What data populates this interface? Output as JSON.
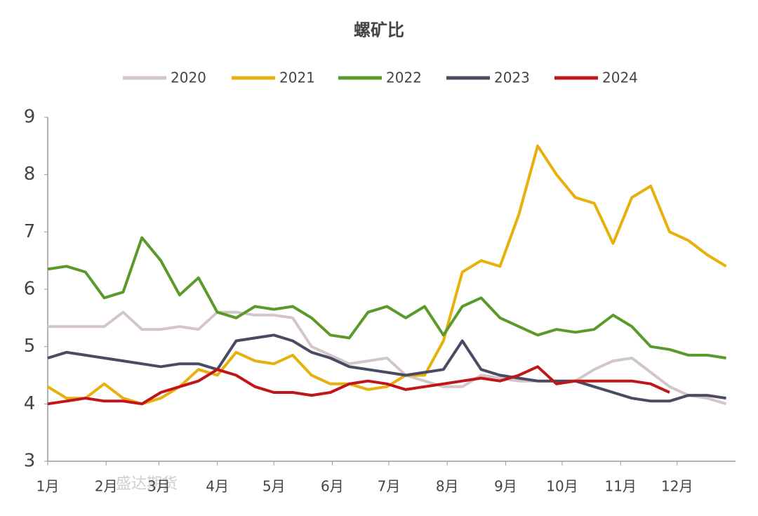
{
  "chart_data": {
    "type": "line",
    "title": "螺矿比",
    "watermark": "盛达期货",
    "x": [
      1,
      11,
      21,
      31,
      41,
      51,
      61,
      71,
      81,
      91,
      101,
      111,
      121,
      131,
      141,
      151,
      161,
      171,
      181,
      191,
      201,
      211,
      221,
      231,
      241,
      251,
      261,
      271,
      281,
      291,
      301,
      311,
      321,
      331,
      341,
      351,
      361
    ],
    "xlim": [
      1,
      366
    ],
    "xticks": [
      {
        "value": 1,
        "label": "1月"
      },
      {
        "value": 32,
        "label": "2月"
      },
      {
        "value": 60,
        "label": "3月"
      },
      {
        "value": 91,
        "label": "4月"
      },
      {
        "value": 121,
        "label": "5月"
      },
      {
        "value": 152,
        "label": "6月"
      },
      {
        "value": 182,
        "label": "7月"
      },
      {
        "value": 213,
        "label": "8月"
      },
      {
        "value": 244,
        "label": "9月"
      },
      {
        "value": 274,
        "label": "10月"
      },
      {
        "value": 305,
        "label": "11月"
      },
      {
        "value": 335,
        "label": "12月"
      }
    ],
    "ylim": [
      3,
      9
    ],
    "yticks": [
      3,
      4,
      5,
      6,
      7,
      8,
      9
    ],
    "series": [
      {
        "name": "2020",
        "color": "#d3c5c8",
        "values": [
          5.35,
          5.35,
          5.35,
          5.35,
          5.6,
          5.3,
          5.3,
          5.35,
          5.3,
          5.6,
          5.6,
          5.55,
          5.55,
          5.5,
          5.0,
          4.85,
          4.7,
          4.75,
          4.8,
          4.5,
          4.4,
          4.3,
          4.3,
          4.5,
          4.45,
          4.4,
          4.4,
          4.4,
          4.4,
          4.6,
          4.75,
          4.8,
          4.55,
          4.3,
          4.15,
          4.1,
          4.0
        ]
      },
      {
        "name": "2021",
        "color": "#e8b00c",
        "values": [
          4.3,
          4.1,
          4.1,
          4.35,
          4.1,
          4.0,
          4.1,
          4.3,
          4.6,
          4.5,
          4.9,
          4.75,
          4.7,
          4.85,
          4.5,
          4.35,
          4.35,
          4.25,
          4.3,
          4.5,
          4.5,
          5.1,
          6.3,
          6.5,
          6.4,
          7.3,
          8.5,
          8.0,
          7.6,
          7.5,
          6.8,
          7.6,
          7.8,
          7.0,
          6.85,
          6.6,
          6.4
        ]
      },
      {
        "name": "2022",
        "color": "#5a9a2a",
        "values": [
          6.35,
          6.4,
          6.3,
          5.85,
          5.95,
          6.9,
          6.5,
          5.9,
          6.2,
          5.6,
          5.5,
          5.7,
          5.65,
          5.7,
          5.5,
          5.2,
          5.15,
          5.6,
          5.7,
          5.5,
          5.7,
          5.2,
          5.7,
          5.85,
          5.5,
          5.35,
          5.2,
          5.3,
          5.25,
          5.3,
          5.55,
          5.35,
          5.0,
          4.95,
          4.85,
          4.85,
          4.8
        ]
      },
      {
        "name": "2023",
        "color": "#4a4b63",
        "values": [
          4.8,
          4.9,
          4.85,
          4.8,
          4.75,
          4.7,
          4.65,
          4.7,
          4.7,
          4.6,
          5.1,
          5.15,
          5.2,
          5.1,
          4.9,
          4.8,
          4.65,
          4.6,
          4.55,
          4.5,
          4.55,
          4.6,
          5.1,
          4.6,
          4.5,
          4.45,
          4.4,
          4.4,
          4.4,
          4.3,
          4.2,
          4.1,
          4.05,
          4.05,
          4.15,
          4.15,
          4.1
        ]
      },
      {
        "name": "2024",
        "color": "#c0161a",
        "values": [
          4.0,
          4.05,
          4.1,
          4.05,
          4.05,
          4.0,
          4.2,
          4.3,
          4.4,
          4.6,
          4.5,
          4.3,
          4.2,
          4.2,
          4.15,
          4.2,
          4.35,
          4.4,
          4.35,
          4.25,
          4.3,
          4.35,
          4.4,
          4.45,
          4.4,
          4.5,
          4.65,
          4.35,
          4.4,
          4.4,
          4.4,
          4.4,
          4.35,
          4.2,
          null,
          null,
          null
        ]
      }
    ]
  }
}
